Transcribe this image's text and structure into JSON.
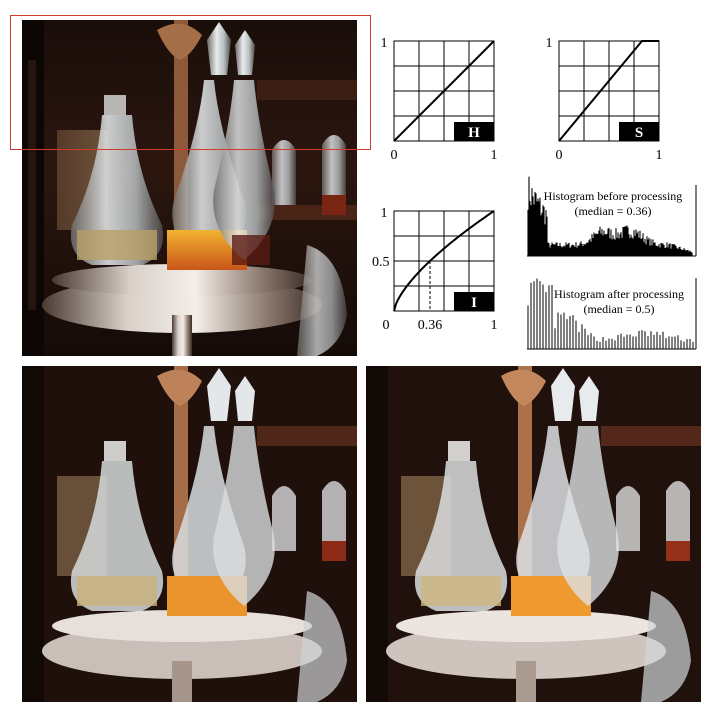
{
  "curves": {
    "h": {
      "label": "H",
      "y_top": "1",
      "x_start": "0",
      "x_end": "1",
      "mapping": "identity"
    },
    "s": {
      "label": "S",
      "y_top": "1",
      "x_start": "0",
      "x_end": "1",
      "mapping": "y = min(1, 1.2x)"
    },
    "i": {
      "label": "I",
      "y_top": "1",
      "y_mid": "0.5",
      "x_start": "0",
      "x_mark": "0.36",
      "x_end": "1",
      "mapping": "concave power-law (gamma)",
      "median_in": 0.36,
      "median_out": 0.5
    }
  },
  "histograms": {
    "before": {
      "title": "Histogram before processing",
      "median_text": "(median = 0.36)"
    },
    "after": {
      "title": "Histogram after processing",
      "median_text": "(median = 0.5)"
    }
  },
  "colors": {
    "roi_box": "#d33a2c",
    "curve": "#000000",
    "grid": "#000000",
    "label_box_bg": "#000000",
    "label_box_fg": "#ffffff"
  },
  "photos": {
    "top": "cruet-original",
    "bottom_left": "cruet-processed",
    "bottom_right": "cruet-processed-variant"
  }
}
